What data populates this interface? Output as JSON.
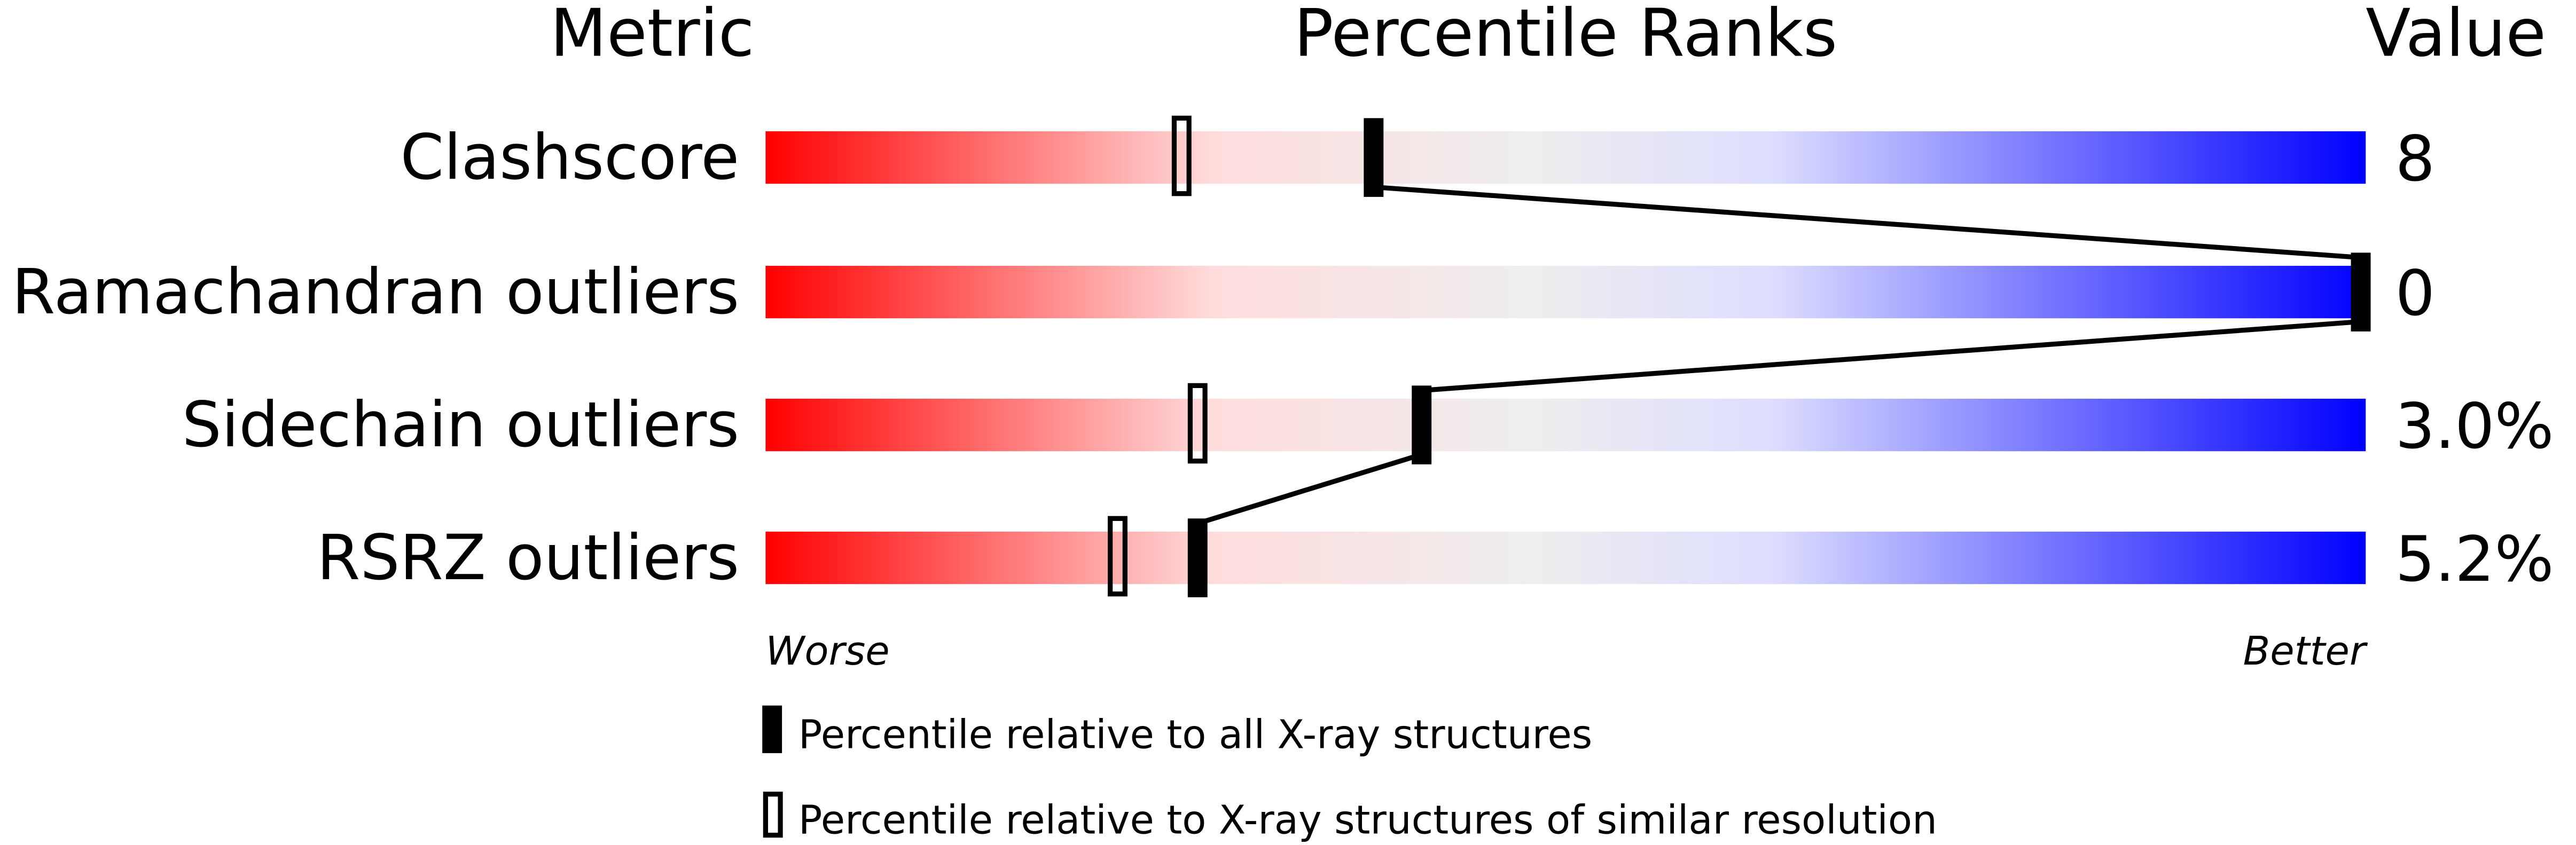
{
  "chart_data": {
    "type": "percentile-slider",
    "headers": {
      "metric": "Metric",
      "ranks": "Percentile Ranks",
      "value": "Value"
    },
    "xlim": [
      0,
      100
    ],
    "scale_left_label": "Worse",
    "scale_right_label": "Better",
    "gradient_colors": [
      "#ff0000",
      "#ffdddd",
      "#eeeeee",
      "#ddddff",
      "#0000ff"
    ],
    "metrics": [
      {
        "name": "Clashscore",
        "value": "8",
        "percentile_all": 38,
        "percentile_similar": 26
      },
      {
        "name": "Ramachandran outliers",
        "value": "0",
        "percentile_all": 100,
        "percentile_similar": null
      },
      {
        "name": "Sidechain outliers",
        "value": "3.0%",
        "percentile_all": 41,
        "percentile_similar": 27
      },
      {
        "name": "RSRZ outliers",
        "value": "5.2%",
        "percentile_all": 27,
        "percentile_similar": 22
      }
    ],
    "legend": {
      "all": "Percentile relative to all X-ray structures",
      "similar": "Percentile relative to X-ray structures of similar resolution"
    }
  }
}
